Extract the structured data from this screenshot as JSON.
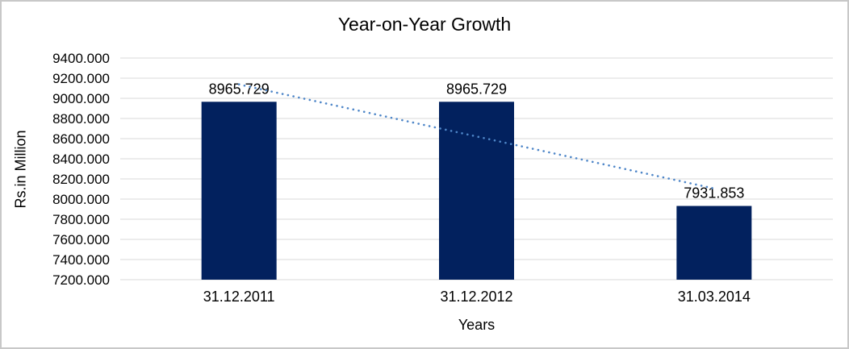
{
  "chart_data": {
    "type": "bar",
    "title": "Year-on-Year Growth",
    "xlabel": "Years",
    "ylabel": "Rs.in Million",
    "categories": [
      "31.12.2011",
      "31.12.2012",
      "31.03.2014"
    ],
    "series": [
      {
        "name": "Rs.in Million",
        "values": [
          8965.729,
          8965.729,
          7931.853
        ]
      }
    ],
    "data_labels": [
      "8965.729",
      "8965.729",
      "7931.853"
    ],
    "ylim": [
      7200,
      9400
    ],
    "ytick_step": 200,
    "yticks": [
      "9400.000",
      "9200.000",
      "9000.000",
      "8800.000",
      "8600.000",
      "8400.000",
      "8200.000",
      "8000.000",
      "7800.000",
      "7600.000",
      "7400.000",
      "7200.000"
    ],
    "grid": true,
    "legend": "none",
    "trendline": {
      "type": "linear",
      "style": "dotted",
      "color": "#4E86C8",
      "start_value": 9138,
      "end_value": 8105
    },
    "colors": {
      "bar": "#02215E",
      "gridline": "#D9D9D9",
      "text": "#000000",
      "background": "#FFFFFF",
      "frame_border": "#C8C8C8"
    }
  }
}
